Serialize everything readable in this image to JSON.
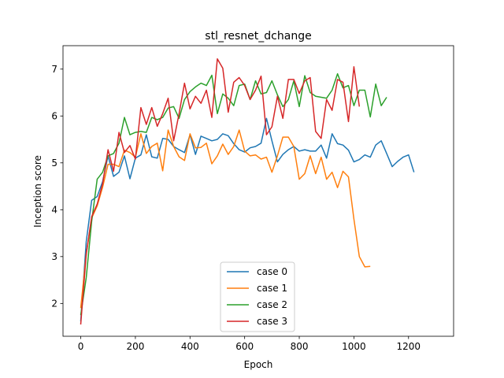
{
  "chart_data": {
    "type": "line",
    "title": "stl_resnet_dchange",
    "xlabel": "Epoch",
    "ylabel": "Inception score",
    "xlim": [
      -65,
      1365
    ],
    "ylim": [
      1.3,
      7.5
    ],
    "xticks": [
      0,
      200,
      400,
      600,
      800,
      1000,
      1200
    ],
    "yticks": [
      2,
      3,
      4,
      5,
      6,
      7
    ],
    "grid": false,
    "legend_position": "bottom-center",
    "x": [
      0,
      20,
      40,
      60,
      80,
      100,
      120,
      140,
      160,
      180,
      200,
      220,
      240,
      260,
      280,
      300,
      320,
      340,
      360,
      380,
      400,
      420,
      440,
      460,
      480,
      500,
      520,
      540,
      560,
      580,
      600,
      620,
      640,
      660,
      680,
      700,
      720,
      740,
      760,
      780,
      800,
      820,
      840,
      860,
      880,
      900,
      920,
      940,
      960,
      980,
      1000,
      1020,
      1040,
      1060,
      1080,
      1100,
      1120,
      1140,
      1160,
      1180,
      1200,
      1220,
      1240,
      1260,
      1280,
      1300
    ],
    "series": [
      {
        "name": "case 0",
        "color": "#1f77b4",
        "values": [
          1.62,
          3.32,
          4.2,
          4.28,
          4.6,
          5.15,
          4.71,
          4.8,
          5.15,
          4.66,
          5.1,
          5.17,
          5.6,
          5.13,
          5.1,
          5.52,
          5.5,
          5.35,
          5.28,
          5.22,
          5.6,
          5.18,
          5.57,
          5.52,
          5.47,
          5.5,
          5.62,
          5.58,
          5.41,
          5.28,
          5.23,
          5.32,
          5.35,
          5.42,
          5.95,
          5.47,
          5.02,
          5.18,
          5.28,
          5.35,
          5.25,
          5.28,
          5.25,
          5.25,
          5.38,
          5.1,
          5.62,
          5.41,
          5.38,
          5.27,
          5.02,
          5.07,
          5.17,
          5.12,
          5.38,
          5.47,
          5.2,
          4.92,
          5.03,
          5.12,
          5.17,
          4.8,
          null,
          null,
          null,
          null
        ]
      },
      {
        "name": "case 1",
        "color": "#ff7f0e",
        "values": [
          1.9,
          3.05,
          3.82,
          4.08,
          4.48,
          4.97,
          4.97,
          4.92,
          5.27,
          5.22,
          5.12,
          5.62,
          5.2,
          5.35,
          5.42,
          4.83,
          5.7,
          5.35,
          5.13,
          5.05,
          5.62,
          5.32,
          5.33,
          5.42,
          4.98,
          5.15,
          5.4,
          5.18,
          5.35,
          5.7,
          5.25,
          5.15,
          5.17,
          5.08,
          5.12,
          4.8,
          5.15,
          5.55,
          5.55,
          5.35,
          4.65,
          4.77,
          5.15,
          4.77,
          5.12,
          4.65,
          4.8,
          4.47,
          4.82,
          4.7,
          3.8,
          3,
          2.78,
          2.79,
          null,
          null,
          null,
          null,
          null,
          null,
          null,
          null,
          null,
          null,
          null,
          null
        ]
      },
      {
        "name": "case 2",
        "color": "#2ca02c",
        "values": [
          1.75,
          2.55,
          3.75,
          4.65,
          4.8,
          5.15,
          5.2,
          5.42,
          5.97,
          5.6,
          5.65,
          5.67,
          5.65,
          5.97,
          5.92,
          5.97,
          6.17,
          6.2,
          5.95,
          6.35,
          6.52,
          6.62,
          6.7,
          6.65,
          6.87,
          6.05,
          6.47,
          6.38,
          6.22,
          6.65,
          6.68,
          6.35,
          6.75,
          6.47,
          6.5,
          6.75,
          6.45,
          6.2,
          6.35,
          6.75,
          6.2,
          6.86,
          6.5,
          6.42,
          6.4,
          6.38,
          6.55,
          6.9,
          6.6,
          6.65,
          6.22,
          6.55,
          6.55,
          5.98,
          6.68,
          6.22,
          6.4,
          null,
          null,
          null,
          null,
          null,
          null,
          null,
          null,
          null
        ]
      },
      {
        "name": "case 3",
        "color": "#d62728",
        "values": [
          1.55,
          3.05,
          3.85,
          4.12,
          4.55,
          5.28,
          4.82,
          5.65,
          5.22,
          5.37,
          5.08,
          6.18,
          5.82,
          6.18,
          5.78,
          6.05,
          6.38,
          5.47,
          6.05,
          6.7,
          6.15,
          6.42,
          6.27,
          6.55,
          5.97,
          7.22,
          7.02,
          6.08,
          6.72,
          6.82,
          6.65,
          6.35,
          6.55,
          6.85,
          5.6,
          5.77,
          6.42,
          5.95,
          6.78,
          6.78,
          6.48,
          6.75,
          6.82,
          5.67,
          5.52,
          6.35,
          6.12,
          6.78,
          6.72,
          5.88,
          7.05,
          6.2,
          null,
          null,
          null,
          null,
          null,
          null,
          null,
          null,
          null,
          null,
          null,
          null,
          null,
          null
        ]
      }
    ]
  }
}
